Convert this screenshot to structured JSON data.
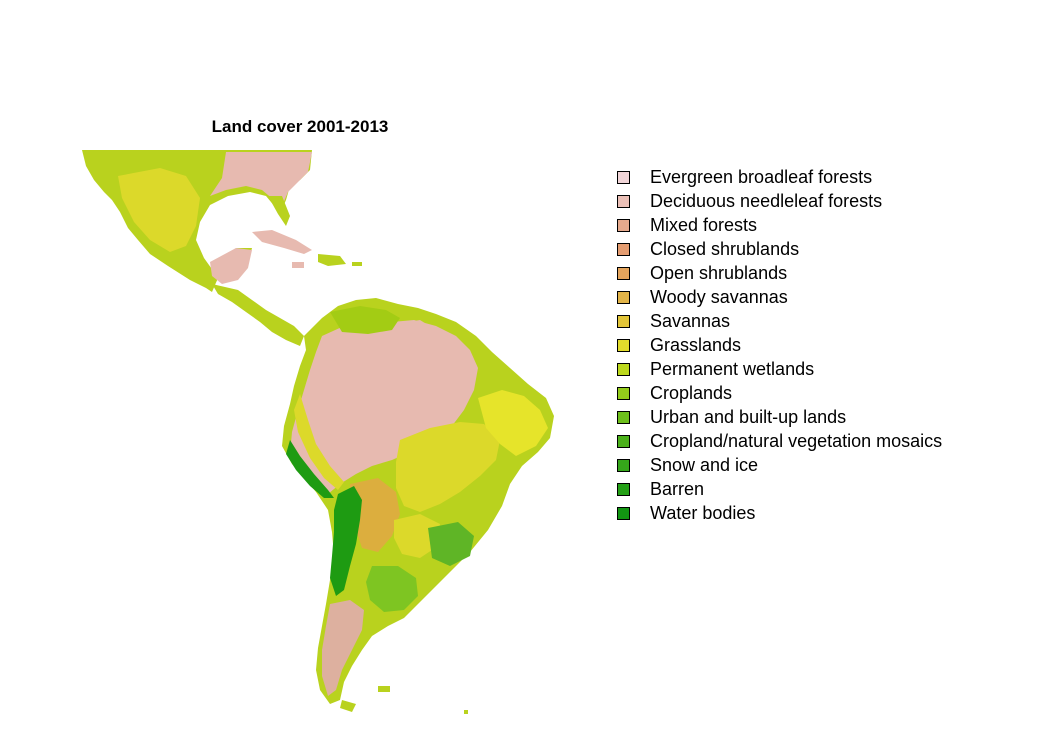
{
  "map": {
    "title": "Land cover 2001-2013",
    "colors": {
      "rainforest": "#e7bab0",
      "forest_dark": "#ddb09f",
      "grass": "#b9d21e",
      "grass_bright": "#a3cc14",
      "savanna": "#dcd92a",
      "yellow": "#e6e42a",
      "wood_orange": "#dcae3e",
      "crop_green": "#7ec522",
      "mosaic_green": "#5fb526",
      "chile_green": "#1e9b12"
    },
    "legend": [
      {
        "label": "Evergreen broadleaf forests",
        "color": "#f1d5d8"
      },
      {
        "label": "Deciduous needleleaf forests",
        "color": "#ebc0b7"
      },
      {
        "label": "Mixed forests",
        "color": "#e6aa8d"
      },
      {
        "label": "Closed shrublands",
        "color": "#e49c70"
      },
      {
        "label": "Open shrublands",
        "color": "#e5a55d"
      },
      {
        "label": "Woody savannas",
        "color": "#e2b448"
      },
      {
        "label": "Savannas",
        "color": "#e2c538"
      },
      {
        "label": "Grasslands",
        "color": "#e2dc2c"
      },
      {
        "label": "Permanent wetlands",
        "color": "#bcd81d"
      },
      {
        "label": "Croplands",
        "color": "#94cd1b"
      },
      {
        "label": "Urban and built-up lands",
        "color": "#6dbf1b"
      },
      {
        "label": "Cropland/natural vegetation mosaics",
        "color": "#4bb11a"
      },
      {
        "label": "Snow and ice",
        "color": "#35a61a"
      },
      {
        "label": "Barren",
        "color": "#24a016"
      },
      {
        "label": "Water bodies",
        "color": "#129612"
      }
    ]
  }
}
